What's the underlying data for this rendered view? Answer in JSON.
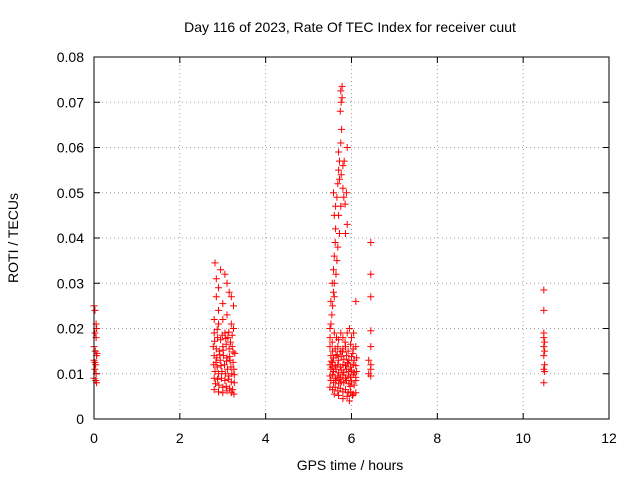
{
  "chart_data": {
    "type": "scatter",
    "title": "Day 116 of 2023, Rate Of TEC Index for receiver cuut",
    "xlabel": "GPS time / hours",
    "ylabel": "ROTI / TECUs",
    "xlim": [
      0,
      12
    ],
    "ylim": [
      0,
      0.08
    ],
    "xticks": [
      0,
      2,
      4,
      6,
      8,
      10,
      12
    ],
    "xtick_labels": [
      "0",
      "2",
      "4",
      "6",
      "8",
      "10",
      "12"
    ],
    "yticks": [
      0,
      0.01,
      0.02,
      0.03,
      0.04,
      0.05,
      0.06,
      0.07,
      0.08
    ],
    "ytick_labels": [
      "0",
      "0.01",
      "0.02",
      "0.03",
      "0.04",
      "0.05",
      "0.06",
      "0.07",
      "0.08"
    ],
    "grid": true,
    "marker": "+",
    "color": "#ff0000",
    "series": [
      {
        "name": "ROTI",
        "points": [
          [
            0.0,
            0.025
          ],
          [
            0.02,
            0.024
          ],
          [
            0.05,
            0.021
          ],
          [
            0.06,
            0.02
          ],
          [
            0.02,
            0.019
          ],
          [
            0.05,
            0.018
          ],
          [
            0.0,
            0.016
          ],
          [
            0.03,
            0.015
          ],
          [
            0.06,
            0.014
          ],
          [
            0.0,
            0.013
          ],
          [
            0.04,
            0.012
          ],
          [
            0.02,
            0.011
          ],
          [
            0.05,
            0.01
          ],
          [
            0.0,
            0.009
          ],
          [
            0.04,
            0.0085
          ],
          [
            0.06,
            0.008
          ],
          [
            0.02,
            0.0125
          ],
          [
            0.07,
            0.0145
          ],
          [
            2.82,
            0.0345
          ],
          [
            2.85,
            0.031
          ],
          [
            2.9,
            0.029
          ],
          [
            2.95,
            0.033
          ],
          [
            3.05,
            0.032
          ],
          [
            3.1,
            0.03
          ],
          [
            3.15,
            0.028
          ],
          [
            3.2,
            0.027
          ],
          [
            3.25,
            0.025
          ],
          [
            2.85,
            0.027
          ],
          [
            2.9,
            0.024
          ],
          [
            3.0,
            0.0255
          ],
          [
            2.8,
            0.022
          ],
          [
            2.9,
            0.021
          ],
          [
            3.0,
            0.022
          ],
          [
            3.1,
            0.023
          ],
          [
            3.2,
            0.021
          ],
          [
            3.25,
            0.02
          ],
          [
            2.8,
            0.019
          ],
          [
            2.88,
            0.018
          ],
          [
            2.95,
            0.0175
          ],
          [
            3.05,
            0.019
          ],
          [
            3.12,
            0.018
          ],
          [
            3.18,
            0.017
          ],
          [
            2.78,
            0.016
          ],
          [
            2.85,
            0.0155
          ],
          [
            2.92,
            0.015
          ],
          [
            3.0,
            0.016
          ],
          [
            3.08,
            0.0165
          ],
          [
            3.15,
            0.0155
          ],
          [
            3.22,
            0.016
          ],
          [
            3.28,
            0.0145
          ],
          [
            2.8,
            0.014
          ],
          [
            2.86,
            0.0135
          ],
          [
            2.94,
            0.013
          ],
          [
            3.02,
            0.014
          ],
          [
            3.1,
            0.0135
          ],
          [
            3.17,
            0.013
          ],
          [
            3.24,
            0.0125
          ],
          [
            2.79,
            0.012
          ],
          [
            2.87,
            0.0115
          ],
          [
            2.96,
            0.0118
          ],
          [
            3.04,
            0.012
          ],
          [
            3.11,
            0.011
          ],
          [
            3.19,
            0.0115
          ],
          [
            3.26,
            0.011
          ],
          [
            2.82,
            0.0105
          ],
          [
            2.9,
            0.01
          ],
          [
            2.98,
            0.0105
          ],
          [
            3.06,
            0.01
          ],
          [
            3.14,
            0.0095
          ],
          [
            3.21,
            0.01
          ],
          [
            3.27,
            0.0098
          ],
          [
            2.8,
            0.009
          ],
          [
            2.88,
            0.0088
          ],
          [
            2.97,
            0.009
          ],
          [
            3.05,
            0.0085
          ],
          [
            3.13,
            0.0088
          ],
          [
            3.2,
            0.0082
          ],
          [
            3.27,
            0.008
          ],
          [
            2.83,
            0.0078
          ],
          [
            2.91,
            0.0075
          ],
          [
            3.0,
            0.007
          ],
          [
            3.08,
            0.0072
          ],
          [
            3.16,
            0.0068
          ],
          [
            3.23,
            0.0065
          ],
          [
            2.8,
            0.0065
          ],
          [
            2.9,
            0.006
          ],
          [
            3.0,
            0.0058
          ],
          [
            3.1,
            0.0062
          ],
          [
            3.2,
            0.0058
          ],
          [
            3.26,
            0.0055
          ],
          [
            2.84,
            0.0125
          ],
          [
            2.93,
            0.0142
          ],
          [
            3.01,
            0.0152
          ],
          [
            3.09,
            0.0128
          ],
          [
            3.16,
            0.0138
          ],
          [
            3.24,
            0.0148
          ],
          [
            2.81,
            0.0172
          ],
          [
            2.99,
            0.0185
          ],
          [
            3.07,
            0.0178
          ],
          [
            3.14,
            0.0192
          ],
          [
            3.22,
            0.0185
          ],
          [
            2.87,
            0.0198
          ],
          [
            5.52,
            0.026
          ],
          [
            5.55,
            0.03
          ],
          [
            5.58,
            0.033
          ],
          [
            5.6,
            0.036
          ],
          [
            5.62,
            0.039
          ],
          [
            5.63,
            0.042
          ],
          [
            5.6,
            0.045
          ],
          [
            5.63,
            0.047
          ],
          [
            5.58,
            0.05
          ],
          [
            5.66,
            0.049
          ],
          [
            5.68,
            0.052
          ],
          [
            5.7,
            0.055
          ],
          [
            5.72,
            0.057
          ],
          [
            5.7,
            0.059
          ],
          [
            5.75,
            0.061
          ],
          [
            5.77,
            0.064
          ],
          [
            5.74,
            0.068
          ],
          [
            5.76,
            0.07
          ],
          [
            5.78,
            0.071
          ],
          [
            5.75,
            0.0725
          ],
          [
            5.78,
            0.0735
          ],
          [
            5.72,
            0.053
          ],
          [
            5.76,
            0.054
          ],
          [
            5.8,
            0.051
          ],
          [
            5.82,
            0.049
          ],
          [
            5.75,
            0.047
          ],
          [
            5.85,
            0.0475
          ],
          [
            5.88,
            0.05
          ],
          [
            5.8,
            0.056
          ],
          [
            5.7,
            0.045
          ],
          [
            5.72,
            0.041
          ],
          [
            5.68,
            0.038
          ],
          [
            5.66,
            0.035
          ],
          [
            5.64,
            0.032
          ],
          [
            5.6,
            0.03
          ],
          [
            5.58,
            0.028
          ],
          [
            5.56,
            0.025
          ],
          [
            5.54,
            0.023
          ],
          [
            5.52,
            0.021
          ],
          [
            5.5,
            0.02
          ],
          [
            5.86,
            0.041
          ],
          [
            5.9,
            0.043
          ],
          [
            5.9,
            0.06
          ],
          [
            5.83,
            0.057
          ],
          [
            5.6,
            0.027
          ],
          [
            5.5,
            0.018
          ],
          [
            5.55,
            0.017
          ],
          [
            5.6,
            0.019
          ],
          [
            5.65,
            0.018
          ],
          [
            5.7,
            0.0175
          ],
          [
            5.75,
            0.019
          ],
          [
            5.8,
            0.018
          ],
          [
            5.85,
            0.017
          ],
          [
            5.9,
            0.019
          ],
          [
            5.95,
            0.02
          ],
          [
            6.0,
            0.018
          ],
          [
            6.05,
            0.019
          ],
          [
            5.5,
            0.016
          ],
          [
            5.56,
            0.015
          ],
          [
            5.62,
            0.0155
          ],
          [
            5.68,
            0.016
          ],
          [
            5.74,
            0.015
          ],
          [
            5.8,
            0.0155
          ],
          [
            5.86,
            0.016
          ],
          [
            5.92,
            0.015
          ],
          [
            5.98,
            0.0165
          ],
          [
            6.04,
            0.0155
          ],
          [
            6.1,
            0.016
          ],
          [
            5.52,
            0.014
          ],
          [
            5.58,
            0.0135
          ],
          [
            5.64,
            0.014
          ],
          [
            5.7,
            0.013
          ],
          [
            5.76,
            0.0138
          ],
          [
            5.82,
            0.0132
          ],
          [
            5.88,
            0.014
          ],
          [
            5.94,
            0.013
          ],
          [
            6.0,
            0.0138
          ],
          [
            6.06,
            0.013
          ],
          [
            6.12,
            0.0135
          ],
          [
            5.5,
            0.012
          ],
          [
            5.56,
            0.0125
          ],
          [
            5.62,
            0.0118
          ],
          [
            5.68,
            0.012
          ],
          [
            5.74,
            0.0115
          ],
          [
            5.8,
            0.012
          ],
          [
            5.86,
            0.0118
          ],
          [
            5.92,
            0.0122
          ],
          [
            5.98,
            0.0115
          ],
          [
            6.04,
            0.012
          ],
          [
            6.1,
            0.0118
          ],
          [
            5.52,
            0.011
          ],
          [
            5.58,
            0.0105
          ],
          [
            5.64,
            0.011
          ],
          [
            5.7,
            0.0102
          ],
          [
            5.76,
            0.0108
          ],
          [
            5.82,
            0.0103
          ],
          [
            5.88,
            0.011
          ],
          [
            5.94,
            0.0105
          ],
          [
            6.0,
            0.0108
          ],
          [
            6.06,
            0.0102
          ],
          [
            6.12,
            0.0105
          ],
          [
            5.5,
            0.0095
          ],
          [
            5.56,
            0.0098
          ],
          [
            5.62,
            0.009
          ],
          [
            5.68,
            0.0095
          ],
          [
            5.74,
            0.0092
          ],
          [
            5.8,
            0.0098
          ],
          [
            5.86,
            0.009
          ],
          [
            5.92,
            0.0095
          ],
          [
            5.98,
            0.0092
          ],
          [
            6.04,
            0.0098
          ],
          [
            6.1,
            0.0092
          ],
          [
            5.52,
            0.0085
          ],
          [
            5.58,
            0.008
          ],
          [
            5.64,
            0.0085
          ],
          [
            5.7,
            0.0078
          ],
          [
            5.76,
            0.0082
          ],
          [
            5.82,
            0.008
          ],
          [
            5.88,
            0.0085
          ],
          [
            5.94,
            0.0078
          ],
          [
            6.0,
            0.0082
          ],
          [
            6.06,
            0.0075
          ],
          [
            5.5,
            0.007
          ],
          [
            5.56,
            0.0065
          ],
          [
            5.62,
            0.007
          ],
          [
            5.68,
            0.0062
          ],
          [
            5.74,
            0.0068
          ],
          [
            5.8,
            0.006
          ],
          [
            5.86,
            0.0065
          ],
          [
            5.92,
            0.0058
          ],
          [
            5.98,
            0.006
          ],
          [
            6.04,
            0.0055
          ],
          [
            6.1,
            0.0058
          ],
          [
            5.6,
            0.0055
          ],
          [
            5.9,
            0.005
          ],
          [
            5.95,
            0.004
          ],
          [
            5.8,
            0.0045
          ],
          [
            5.7,
            0.0052
          ],
          [
            6.02,
            0.0052
          ],
          [
            5.53,
            0.0128
          ],
          [
            5.67,
            0.0142
          ],
          [
            5.79,
            0.0148
          ],
          [
            5.91,
            0.0125
          ],
          [
            6.03,
            0.0145
          ],
          [
            5.55,
            0.0115
          ],
          [
            5.73,
            0.0088
          ],
          [
            5.97,
            0.0072
          ],
          [
            6.45,
            0.039
          ],
          [
            6.45,
            0.032
          ],
          [
            6.45,
            0.027
          ],
          [
            6.1,
            0.026
          ],
          [
            6.45,
            0.0195
          ],
          [
            6.45,
            0.016
          ],
          [
            6.4,
            0.013
          ],
          [
            6.45,
            0.012
          ],
          [
            6.45,
            0.011
          ],
          [
            6.4,
            0.01
          ],
          [
            6.45,
            0.0095
          ],
          [
            6.1,
            0.0085
          ],
          [
            10.48,
            0.0285
          ],
          [
            10.48,
            0.024
          ],
          [
            10.48,
            0.019
          ],
          [
            10.48,
            0.018
          ],
          [
            10.5,
            0.017
          ],
          [
            10.48,
            0.016
          ],
          [
            10.5,
            0.015
          ],
          [
            10.48,
            0.014
          ],
          [
            10.5,
            0.012
          ],
          [
            10.48,
            0.011
          ],
          [
            10.5,
            0.0105
          ],
          [
            10.48,
            0.008
          ]
        ]
      }
    ]
  }
}
